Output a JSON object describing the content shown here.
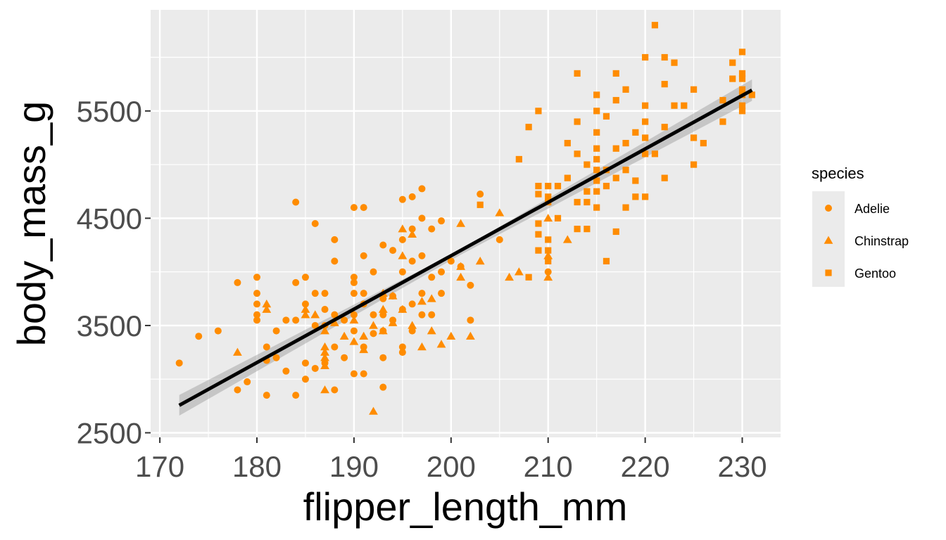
{
  "chart_data": {
    "type": "scatter",
    "title": "",
    "xlabel": "flipper_length_mm",
    "ylabel": "body_mass_g",
    "xlim": [
      169.05,
      233.95
    ],
    "ylim": [
      2457.5,
      6442.5
    ],
    "x_ticks": [
      170,
      180,
      190,
      200,
      210,
      220,
      230
    ],
    "y_ticks": [
      2500,
      3500,
      4500,
      5500
    ],
    "grid": true,
    "point_color": "#FF8C00",
    "legend": {
      "title": "species",
      "placement": "right"
    },
    "series": [
      {
        "name": "Adelie",
        "marker": "circle",
        "points": [
          [
            172,
            3150
          ],
          [
            174,
            3400
          ],
          [
            176,
            3450
          ],
          [
            178,
            3900
          ],
          [
            178,
            2900
          ],
          [
            179,
            2975
          ],
          [
            180,
            3950
          ],
          [
            180,
            3800
          ],
          [
            180,
            3700
          ],
          [
            180,
            3600
          ],
          [
            180,
            3550
          ],
          [
            181,
            3300
          ],
          [
            181,
            3175
          ],
          [
            181,
            2850
          ],
          [
            182,
            3450
          ],
          [
            182,
            3200
          ],
          [
            183,
            3550
          ],
          [
            183,
            3075
          ],
          [
            184,
            4650
          ],
          [
            184,
            3900
          ],
          [
            184,
            3550
          ],
          [
            184,
            2850
          ],
          [
            185,
            3950
          ],
          [
            185,
            3700
          ],
          [
            185,
            3150
          ],
          [
            185,
            3000
          ],
          [
            186,
            4450
          ],
          [
            186,
            3800
          ],
          [
            186,
            3500
          ],
          [
            186,
            3100
          ],
          [
            187,
            3800
          ],
          [
            187,
            3650
          ],
          [
            187,
            3500
          ],
          [
            187,
            3150
          ],
          [
            188,
            4300
          ],
          [
            188,
            4100
          ],
          [
            188,
            3600
          ],
          [
            188,
            3300
          ],
          [
            188,
            2900
          ],
          [
            189,
            3550
          ],
          [
            189,
            3200
          ],
          [
            190,
            4600
          ],
          [
            190,
            3950
          ],
          [
            190,
            3900
          ],
          [
            190,
            3800
          ],
          [
            190,
            3600
          ],
          [
            190,
            3450
          ],
          [
            190,
            3050
          ],
          [
            191,
            4600
          ],
          [
            191,
            4150
          ],
          [
            191,
            3800
          ],
          [
            191,
            3700
          ],
          [
            191,
            3300
          ],
          [
            191,
            3050
          ],
          [
            192,
            4000
          ],
          [
            192,
            3600
          ],
          [
            192,
            3425
          ],
          [
            193,
            4250
          ],
          [
            193,
            3750
          ],
          [
            193,
            3600
          ],
          [
            193,
            3450
          ],
          [
            193,
            3200
          ],
          [
            193,
            2925
          ],
          [
            194,
            4200
          ],
          [
            194,
            3775
          ],
          [
            194,
            3550
          ],
          [
            195,
            4675
          ],
          [
            195,
            4300
          ],
          [
            195,
            4000
          ],
          [
            195,
            3650
          ],
          [
            195,
            3300
          ],
          [
            195,
            3250
          ],
          [
            196,
            4700
          ],
          [
            196,
            4400
          ],
          [
            196,
            4100
          ],
          [
            196,
            3700
          ],
          [
            196,
            3450
          ],
          [
            197,
            4775
          ],
          [
            197,
            4500
          ],
          [
            197,
            4150
          ],
          [
            197,
            3800
          ],
          [
            197,
            3600
          ],
          [
            198,
            4400
          ],
          [
            198,
            3950
          ],
          [
            198,
            3600
          ],
          [
            199,
            4475
          ],
          [
            199,
            4000
          ],
          [
            199,
            3800
          ],
          [
            200,
            4100
          ],
          [
            201,
            4050
          ],
          [
            202,
            3875
          ],
          [
            202,
            3550
          ],
          [
            203,
            4725
          ],
          [
            205,
            4300
          ],
          [
            210,
            4000
          ]
        ]
      },
      {
        "name": "Chinstrap",
        "marker": "triangle",
        "points": [
          [
            178,
            3250
          ],
          [
            181,
            3700
          ],
          [
            181,
            3650
          ],
          [
            185,
            3650
          ],
          [
            185,
            3600
          ],
          [
            186,
            3600
          ],
          [
            187,
            3450
          ],
          [
            187,
            3300
          ],
          [
            187,
            3250
          ],
          [
            187,
            3200
          ],
          [
            187,
            3125
          ],
          [
            187,
            2900
          ],
          [
            188,
            3525
          ],
          [
            189,
            3400
          ],
          [
            190,
            3550
          ],
          [
            190,
            3350
          ],
          [
            191,
            3400
          ],
          [
            191,
            3275
          ],
          [
            192,
            3500
          ],
          [
            192,
            2700
          ],
          [
            193,
            3800
          ],
          [
            193,
            3650
          ],
          [
            193,
            3450
          ],
          [
            194,
            3775
          ],
          [
            194,
            3525
          ],
          [
            195,
            4400
          ],
          [
            195,
            4150
          ],
          [
            195,
            3650
          ],
          [
            196,
            4350
          ],
          [
            196,
            3500
          ],
          [
            197,
            3725
          ],
          [
            197,
            3300
          ],
          [
            198,
            3750
          ],
          [
            198,
            3450
          ],
          [
            199,
            3325
          ],
          [
            200,
            3400
          ],
          [
            201,
            4450
          ],
          [
            201,
            4050
          ],
          [
            201,
            3950
          ],
          [
            202,
            3400
          ],
          [
            203,
            4100
          ],
          [
            205,
            4550
          ],
          [
            206,
            3950
          ],
          [
            207,
            4000
          ],
          [
            210,
            3950
          ],
          [
            210,
            4150
          ],
          [
            210,
            4500
          ],
          [
            212,
            4300
          ]
        ]
      },
      {
        "name": "Gentoo",
        "marker": "square",
        "points": [
          [
            203,
            4625
          ],
          [
            207,
            5050
          ],
          [
            208,
            5350
          ],
          [
            208,
            3950
          ],
          [
            209,
            5500
          ],
          [
            209,
            4800
          ],
          [
            209,
            4725
          ],
          [
            209,
            4450
          ],
          [
            209,
            4350
          ],
          [
            209,
            4200
          ],
          [
            210,
            4800
          ],
          [
            210,
            4700
          ],
          [
            210,
            4650
          ],
          [
            210,
            4300
          ],
          [
            210,
            4200
          ],
          [
            210,
            4100
          ],
          [
            211,
            4800
          ],
          [
            211,
            4500
          ],
          [
            212,
            5200
          ],
          [
            212,
            4875
          ],
          [
            213,
            5850
          ],
          [
            213,
            5400
          ],
          [
            213,
            5100
          ],
          [
            213,
            4650
          ],
          [
            213,
            4400
          ],
          [
            214,
            5000
          ],
          [
            214,
            4750
          ],
          [
            214,
            4650
          ],
          [
            214,
            4400
          ],
          [
            215,
            5650
          ],
          [
            215,
            5500
          ],
          [
            215,
            5300
          ],
          [
            215,
            5150
          ],
          [
            215,
            5050
          ],
          [
            215,
            4950
          ],
          [
            215,
            4850
          ],
          [
            215,
            4750
          ],
          [
            215,
            4600
          ],
          [
            216,
            5450
          ],
          [
            216,
            4950
          ],
          [
            216,
            4800
          ],
          [
            216,
            4100
          ],
          [
            217,
            5850
          ],
          [
            217,
            5600
          ],
          [
            217,
            5150
          ],
          [
            217,
            4875
          ],
          [
            217,
            4375
          ],
          [
            218,
            5700
          ],
          [
            218,
            5200
          ],
          [
            218,
            4950
          ],
          [
            218,
            4600
          ],
          [
            219,
            5300
          ],
          [
            219,
            4850
          ],
          [
            219,
            4700
          ],
          [
            220,
            6000
          ],
          [
            220,
            5550
          ],
          [
            220,
            5400
          ],
          [
            220,
            5250
          ],
          [
            220,
            5100
          ],
          [
            220,
            4700
          ],
          [
            221,
            6300
          ],
          [
            221,
            5100
          ],
          [
            222,
            6000
          ],
          [
            222,
            5750
          ],
          [
            222,
            5350
          ],
          [
            222,
            4875
          ],
          [
            223,
            5950
          ],
          [
            223,
            5550
          ],
          [
            224,
            5550
          ],
          [
            225,
            5700
          ],
          [
            225,
            5250
          ],
          [
            225,
            5000
          ],
          [
            226,
            5200
          ],
          [
            228,
            5600
          ],
          [
            228,
            5400
          ],
          [
            229,
            5950
          ],
          [
            229,
            5800
          ],
          [
            230,
            6050
          ],
          [
            230,
            5850
          ],
          [
            230,
            5800
          ],
          [
            230,
            5700
          ],
          [
            230,
            5650
          ],
          [
            230,
            5550
          ],
          [
            230,
            5500
          ],
          [
            231,
            5650
          ]
        ]
      }
    ],
    "trend_line": {
      "type": "linear",
      "color": "#000000",
      "x": [
        172,
        231
      ],
      "y": [
        2756,
        5694
      ],
      "band": [
        [
          172,
          2660,
          2852
        ],
        [
          201,
          4160,
          4210
        ],
        [
          231,
          5594,
          5794
        ]
      ]
    }
  }
}
